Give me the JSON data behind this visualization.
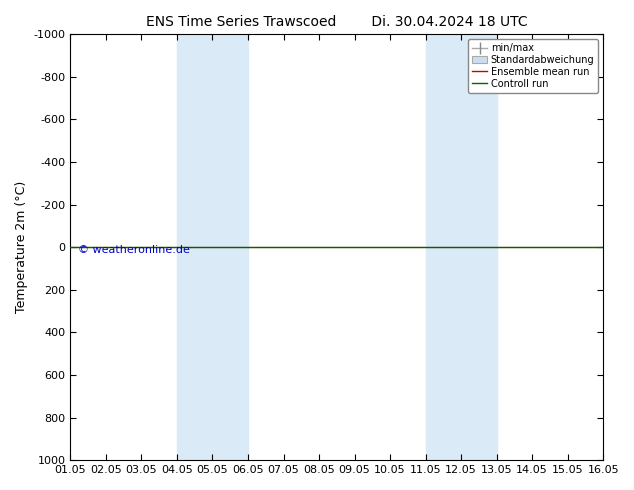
{
  "title": "ENS Time Series Trawscoed",
  "title_right": "Di. 30.04.2024 18 UTC",
  "ylabel": "Temperature 2m (°C)",
  "watermark": "© weatheronline.de",
  "xlim": [
    0,
    15
  ],
  "ylim": [
    -1000,
    1000
  ],
  "yticks": [
    -1000,
    -800,
    -600,
    -400,
    -200,
    0,
    200,
    400,
    600,
    800,
    1000
  ],
  "xtick_labels": [
    "01.05",
    "02.05",
    "03.05",
    "04.05",
    "05.05",
    "06.05",
    "07.05",
    "08.05",
    "09.05",
    "10.05",
    "11.05",
    "12.05",
    "13.05",
    "14.05",
    "15.05",
    "16.05"
  ],
  "shade_bands": [
    {
      "xmin": 3,
      "xmax": 5,
      "color": "#daeaf7"
    },
    {
      "xmin": 10,
      "xmax": 12,
      "color": "#daeaf7"
    }
  ],
  "green_line_y": 0,
  "red_line_y": 0,
  "green_color": "#006600",
  "red_color": "#cc0000",
  "bg_color": "#ffffff",
  "plot_bg_color": "#ffffff",
  "legend_entries": [
    "min/max",
    "Standardabweichung",
    "Ensemble mean run",
    "Controll run"
  ],
  "title_fontsize": 10,
  "axis_fontsize": 9,
  "tick_fontsize": 8,
  "watermark_color": "#0000cc"
}
